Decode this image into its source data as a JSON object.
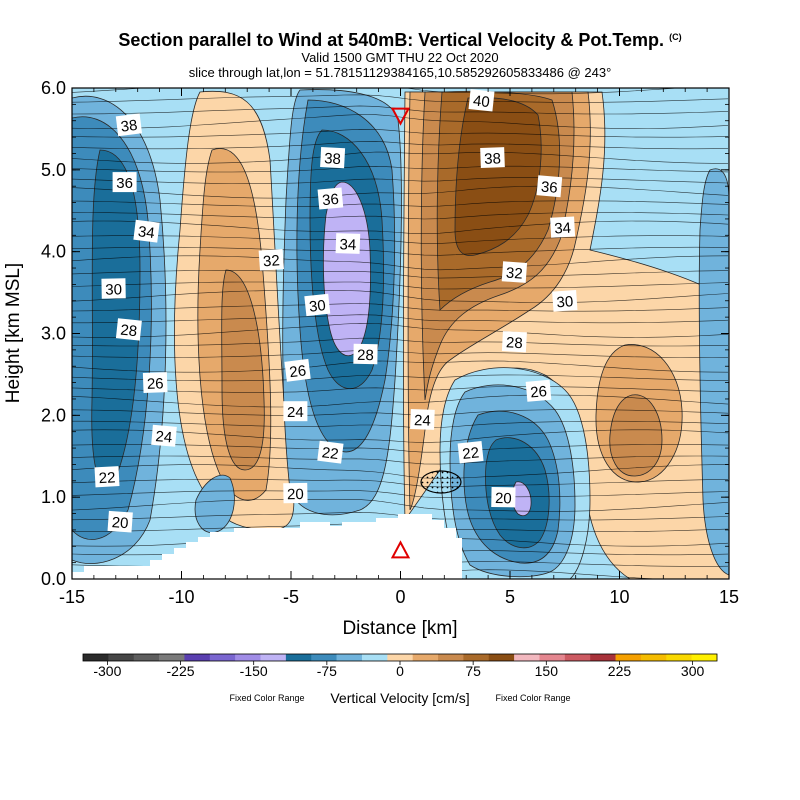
{
  "header": {
    "title": "Section parallel to Wind at 540mB: Vertical Velocity & Pot.Temp.",
    "copyright": "(C)",
    "valid": "Valid 1500 GMT THU 22 Oct 2020",
    "slice": "slice through lat,lon = 51.78151129384165,10.585292605833486 @ 243°"
  },
  "chart_data": {
    "type": "heatmap",
    "title": "Section parallel to Wind at 540mB: Vertical Velocity & Pot.Temp.",
    "xlabel": "Distance [km]",
    "ylabel": "Height [km MSL]",
    "xlim": [
      -15,
      15
    ],
    "ylim": [
      0.0,
      6.0
    ],
    "x_ticks": [
      "-15",
      "-10",
      "-5",
      "0",
      "5",
      "10",
      "15"
    ],
    "y_ticks": [
      "0.0",
      "1.0",
      "2.0",
      "3.0",
      "4.0",
      "5.0",
      "6.0"
    ],
    "field": "Vertical Velocity [cm/s]",
    "contour_field": "Potential Temperature",
    "colorbar": {
      "title": "Vertical Velocity [cm/s]",
      "note_left": "Fixed Color Range",
      "note_right": "Fixed Color Range",
      "range": [
        -325,
        325
      ],
      "tick_labels": [
        "-300",
        "-225",
        "-150",
        "-75",
        "0",
        "75",
        "150",
        "225",
        "300"
      ],
      "colors": [
        "#2b2b2b",
        "#464646",
        "#5e5e5e",
        "#7a7a7a",
        "#5a3fb0",
        "#7a66d0",
        "#a08ce6",
        "#bfb3f5",
        "#1a6e9a",
        "#3d8bbb",
        "#70b3dc",
        "#a8dff5",
        "#fcd6a8",
        "#e6a96b",
        "#c98a4e",
        "#a96a2a",
        "#8a4e14",
        "#f2b8bf",
        "#e4868f",
        "#cc5a62",
        "#a8323a",
        "#f5a000",
        "#f5bc00",
        "#f9d800",
        "#fff000"
      ]
    },
    "contour_labels": [
      {
        "text": "38",
        "x": -12.4,
        "y": 5.55
      },
      {
        "text": "36",
        "x": -12.6,
        "y": 4.85
      },
      {
        "text": "34",
        "x": -11.6,
        "y": 4.25
      },
      {
        "text": "30",
        "x": -13.1,
        "y": 3.55
      },
      {
        "text": "28",
        "x": -12.4,
        "y": 3.05
      },
      {
        "text": "26",
        "x": -11.2,
        "y": 2.4
      },
      {
        "text": "24",
        "x": -10.8,
        "y": 1.75
      },
      {
        "text": "22",
        "x": -13.4,
        "y": 1.25
      },
      {
        "text": "20",
        "x": -12.8,
        "y": 0.7
      },
      {
        "text": "32",
        "x": -5.9,
        "y": 3.9
      },
      {
        "text": "38",
        "x": -3.1,
        "y": 5.15
      },
      {
        "text": "36",
        "x": -3.2,
        "y": 4.65
      },
      {
        "text": "34",
        "x": -2.4,
        "y": 4.1
      },
      {
        "text": "30",
        "x": -3.8,
        "y": 3.35
      },
      {
        "text": "28",
        "x": -1.6,
        "y": 2.75
      },
      {
        "text": "26",
        "x": -4.7,
        "y": 2.55
      },
      {
        "text": "24",
        "x": -4.8,
        "y": 2.05
      },
      {
        "text": "22",
        "x": -3.2,
        "y": 1.55
      },
      {
        "text": "20",
        "x": -4.8,
        "y": 1.05
      },
      {
        "text": "40",
        "x": 3.7,
        "y": 5.85
      },
      {
        "text": "38",
        "x": 4.2,
        "y": 5.15
      },
      {
        "text": "36",
        "x": 6.8,
        "y": 4.8
      },
      {
        "text": "34",
        "x": 7.4,
        "y": 4.3
      },
      {
        "text": "32",
        "x": 5.2,
        "y": 3.75
      },
      {
        "text": "30",
        "x": 7.5,
        "y": 3.4
      },
      {
        "text": "28",
        "x": 5.2,
        "y": 2.9
      },
      {
        "text": "26",
        "x": 6.3,
        "y": 2.3
      },
      {
        "text": "24",
        "x": 1.0,
        "y": 1.95
      },
      {
        "text": "22",
        "x": 3.2,
        "y": 1.55
      },
      {
        "text": "20",
        "x": 4.7,
        "y": 1.0
      }
    ],
    "markers": [
      {
        "shape": "triangle-down",
        "x": 0.0,
        "y": 5.65,
        "color": "#e00000"
      },
      {
        "shape": "triangle-up",
        "x": 0.0,
        "y": 0.35,
        "color": "#e00000"
      }
    ]
  }
}
